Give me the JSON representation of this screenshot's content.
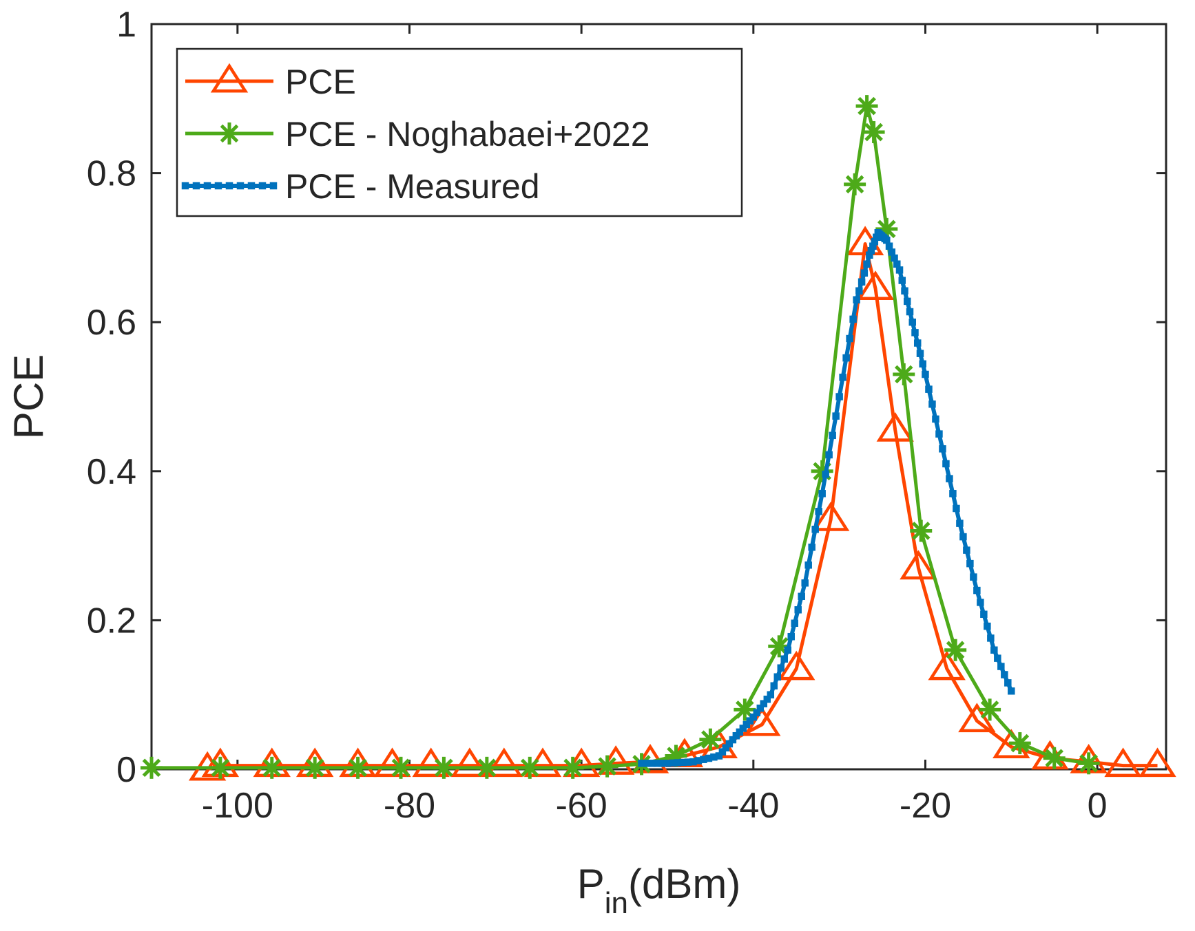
{
  "chart_data": {
    "type": "line",
    "title": "",
    "xlabel": "P",
    "xlabel_sub": "in",
    "xlabel_suffix": "(dBm)",
    "ylabel": "PCE",
    "xlim": [
      -110,
      8
    ],
    "ylim": [
      0,
      1
    ],
    "xticks": [
      -100,
      -80,
      -60,
      -40,
      -20,
      0
    ],
    "yticks": [
      0,
      0.2,
      0.4,
      0.6,
      0.8,
      1
    ],
    "xtick_labels": [
      "-100",
      "-80",
      "-60",
      "-40",
      "-20",
      "0"
    ],
    "ytick_labels": [
      "0",
      "0.2",
      "0.4",
      "0.6",
      "0.8",
      "1"
    ],
    "grid": false,
    "legend_position": "top-left",
    "series": [
      {
        "name": "PCE",
        "color": "#ff4500",
        "marker": "triangle",
        "x": [
          -103.5,
          -102,
          -96,
          -91,
          -86,
          -82,
          -77.5,
          -73,
          -69,
          -64.5,
          -60,
          -56,
          -52,
          -48,
          -44,
          -39,
          -35,
          -31,
          -27,
          -25.8,
          -23.5,
          -20.8,
          -17.5,
          -14,
          -10,
          -5.5,
          -1,
          3,
          7
        ],
        "y": [
          0,
          0.005,
          0.005,
          0.005,
          0.005,
          0.005,
          0.005,
          0.005,
          0.005,
          0.005,
          0.005,
          0.008,
          0.01,
          0.018,
          0.03,
          0.06,
          0.135,
          0.335,
          0.705,
          0.645,
          0.455,
          0.27,
          0.135,
          0.065,
          0.03,
          0.015,
          0.01,
          0.005,
          0.005
        ]
      },
      {
        "name": "PCE - Noghabaei+2022",
        "color": "#4daa19",
        "marker": "star",
        "x": [
          -110,
          -102,
          -96,
          -91,
          -86,
          -81,
          -76,
          -71,
          -66,
          -61,
          -57,
          -53,
          -49,
          -45,
          -41,
          -37,
          -32,
          -28.2,
          -26.8,
          -26,
          -24.5,
          -22.5,
          -20.5,
          -16.5,
          -12.5,
          -9,
          -5,
          -1
        ],
        "y": [
          0.002,
          0.002,
          0.002,
          0.002,
          0.002,
          0.002,
          0.002,
          0.002,
          0.002,
          0.002,
          0.004,
          0.007,
          0.018,
          0.04,
          0.08,
          0.165,
          0.4,
          0.785,
          0.89,
          0.855,
          0.725,
          0.53,
          0.32,
          0.16,
          0.08,
          0.035,
          0.015,
          0.008
        ]
      },
      {
        "name": "PCE - Measured",
        "color": "#0072bd",
        "marker": "square",
        "x": [
          -53,
          -50,
          -47,
          -44,
          -42,
          -40,
          -38,
          -36,
          -34,
          -32,
          -30,
          -28,
          -26.5,
          -25.5,
          -24.5,
          -23,
          -21.5,
          -20,
          -18,
          -16,
          -14,
          -12,
          -10
        ],
        "y": [
          0.008,
          0.008,
          0.01,
          0.018,
          0.045,
          0.07,
          0.1,
          0.16,
          0.25,
          0.37,
          0.5,
          0.63,
          0.69,
          0.72,
          0.71,
          0.67,
          0.6,
          0.53,
          0.43,
          0.33,
          0.24,
          0.16,
          0.105
        ]
      }
    ]
  }
}
